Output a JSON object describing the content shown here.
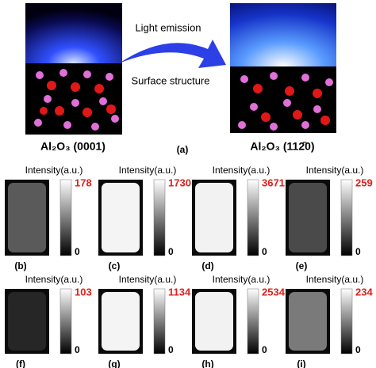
{
  "figure": {
    "top": {
      "left_label": "Al₂O₃ (0001)",
      "right_label": "Al₂O₃ (112̄0)",
      "arrow_top": "Light emission",
      "arrow_bottom": "Surface structure",
      "panel_label": "(a)"
    },
    "panels": [
      {
        "label": "(b)",
        "intensity_label": "Intensity(a.u.)",
        "max": 178,
        "min": 0,
        "color": "#5a5a5a"
      },
      {
        "label": "(c)",
        "intensity_label": "Intensity(a.u.)",
        "max": 1730,
        "min": 0,
        "color": "#f4f4f4"
      },
      {
        "label": "(d)",
        "intensity_label": "Intensity(a.u.)",
        "max": 3671,
        "min": 0,
        "color": "#f2f2f2"
      },
      {
        "label": "(e)",
        "intensity_label": "Intensity(a.u.)",
        "max": 259,
        "min": 0,
        "color": "#4a4a4a"
      },
      {
        "label": "(f)",
        "intensity_label": "Intensity(a.u.)",
        "max": 103,
        "min": 0,
        "color": "#262626"
      },
      {
        "label": "(g)",
        "intensity_label": "Intensity(a.u.)",
        "max": 1134,
        "min": 0,
        "color": "#f4f4f4"
      },
      {
        "label": "(h)",
        "intensity_label": "Intensity(a.u.)",
        "max": 2534,
        "min": 0,
        "color": "#f2f2f2"
      },
      {
        "label": "(i)",
        "intensity_label": "Intensity(a.u.)",
        "max": 234,
        "min": 0,
        "color": "#7a7a7a"
      }
    ]
  }
}
